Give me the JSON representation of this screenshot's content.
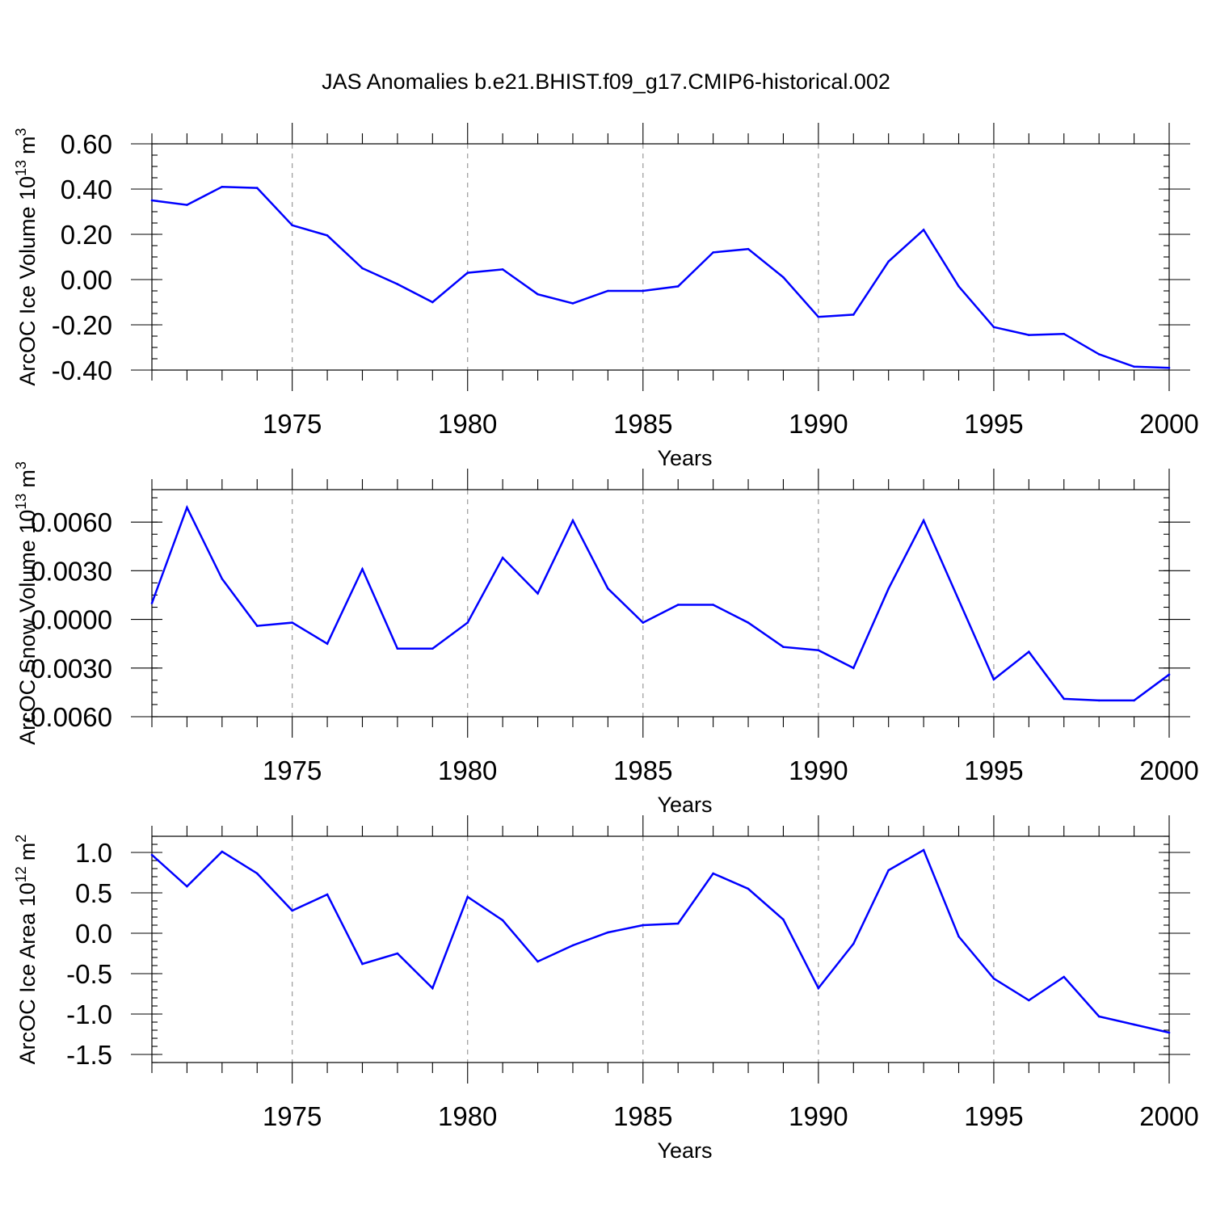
{
  "title": "JAS Anomalies b.e21.BHIST.f09_g17.CMIP6-historical.002",
  "colors": {
    "series": "#0000ff",
    "grid": "#999999",
    "axes": "#000000"
  },
  "chart_data": [
    {
      "type": "line",
      "ylabel": "ArcOC Ice Volume 10",
      "ylabel_sup": "13",
      "ylabel_unit": "m",
      "ylabel_unit_sup": "3",
      "xlabel": "Years",
      "xlim": [
        1971,
        2000
      ],
      "ylim": [
        -0.4,
        0.6
      ],
      "yticks": [
        0.6,
        0.4,
        0.2,
        0.0,
        -0.2,
        -0.4
      ],
      "ytick_labels": [
        "0.60",
        "0.40",
        "0.20",
        "0.00",
        "-0.20",
        "-0.40"
      ],
      "yminor": 0.05,
      "xticks": [
        1975,
        1980,
        1985,
        1990,
        1995,
        2000
      ],
      "xtick_labels": [
        "1975",
        "1980",
        "1985",
        "1990",
        "1995",
        "2000"
      ],
      "grid": "vertical dashed at major x ticks",
      "x": [
        1971,
        1972,
        1973,
        1974,
        1975,
        1976,
        1977,
        1978,
        1979,
        1980,
        1981,
        1982,
        1983,
        1984,
        1985,
        1986,
        1987,
        1988,
        1989,
        1990,
        1991,
        1992,
        1993,
        1994,
        1995,
        1996,
        1997,
        1998,
        1999,
        2000
      ],
      "series": [
        {
          "values": [
            0.35,
            0.33,
            0.41,
            0.405,
            0.24,
            0.195,
            0.05,
            -0.02,
            -0.1,
            0.03,
            0.045,
            -0.065,
            -0.105,
            -0.05,
            -0.05,
            -0.03,
            0.12,
            0.135,
            0.01,
            -0.165,
            -0.155,
            0.08,
            0.22,
            -0.03,
            -0.21,
            -0.245,
            -0.24,
            -0.33,
            -0.385,
            -0.39
          ]
        }
      ]
    },
    {
      "type": "line",
      "ylabel": "ArcOC Snow Volume 10",
      "ylabel_sup": "13",
      "ylabel_unit": "m",
      "ylabel_unit_sup": "3",
      "xlabel": "Years",
      "xlim": [
        1971,
        2000
      ],
      "ylim": [
        -0.006,
        0.008
      ],
      "yticks": [
        0.006,
        0.003,
        0.0,
        -0.003,
        -0.006
      ],
      "ytick_labels": [
        "0.0060",
        "0.0030",
        "0.0000",
        "-0.0030",
        "-0.0060"
      ],
      "yminor": 0.00075,
      "xticks": [
        1975,
        1980,
        1985,
        1990,
        1995,
        2000
      ],
      "xtick_labels": [
        "1975",
        "1980",
        "1985",
        "1990",
        "1995",
        "2000"
      ],
      "grid": "vertical dashed at major x ticks",
      "x": [
        1971,
        1972,
        1973,
        1974,
        1975,
        1976,
        1977,
        1978,
        1979,
        1980,
        1981,
        1982,
        1983,
        1984,
        1985,
        1986,
        1987,
        1988,
        1989,
        1990,
        1991,
        1992,
        1993,
        1994,
        1995,
        1996,
        1997,
        1998,
        1999,
        2000
      ],
      "series": [
        {
          "values": [
            0.001,
            0.0069,
            0.0025,
            -0.0004,
            -0.0002,
            -0.0015,
            0.0031,
            -0.0018,
            -0.0018,
            -0.0002,
            0.0038,
            0.0016,
            0.0061,
            0.0019,
            -0.0002,
            0.0009,
            0.0009,
            -0.0002,
            -0.0017,
            -0.0019,
            -0.003,
            0.0019,
            0.0061,
            0.0012,
            -0.0037,
            -0.002,
            -0.0049,
            -0.005,
            -0.005,
            -0.0034
          ]
        }
      ]
    },
    {
      "type": "line",
      "ylabel": "ArcOC Ice Area 10",
      "ylabel_sup": "12",
      "ylabel_unit": "m",
      "ylabel_unit_sup": "2",
      "xlabel": "Years",
      "xlim": [
        1971,
        2000
      ],
      "ylim": [
        -1.6,
        1.2
      ],
      "yticks": [
        1.0,
        0.5,
        0.0,
        -0.5,
        -1.0,
        -1.5
      ],
      "ytick_labels": [
        "1.0",
        "0.5",
        "0.0",
        "-0.5",
        "-1.0",
        "-1.5"
      ],
      "yminor": 0.1,
      "xticks": [
        1975,
        1980,
        1985,
        1990,
        1995,
        2000
      ],
      "xtick_labels": [
        "1975",
        "1980",
        "1985",
        "1990",
        "1995",
        "2000"
      ],
      "grid": "vertical dashed at major x ticks",
      "x": [
        1971,
        1972,
        1973,
        1974,
        1975,
        1976,
        1977,
        1978,
        1979,
        1980,
        1981,
        1982,
        1983,
        1984,
        1985,
        1986,
        1987,
        1988,
        1989,
        1990,
        1991,
        1992,
        1993,
        1994,
        1995,
        1996,
        1997,
        1998,
        1999,
        2000
      ],
      "series": [
        {
          "values": [
            0.97,
            0.58,
            1.01,
            0.74,
            0.28,
            0.48,
            -0.38,
            -0.25,
            -0.68,
            0.45,
            0.16,
            -0.35,
            -0.15,
            0.01,
            0.1,
            0.12,
            0.74,
            0.55,
            0.17,
            -0.68,
            -0.13,
            0.78,
            1.03,
            -0.04,
            -0.56,
            -0.83,
            -0.54,
            -1.03,
            -1.13,
            -1.23
          ]
        }
      ]
    }
  ]
}
